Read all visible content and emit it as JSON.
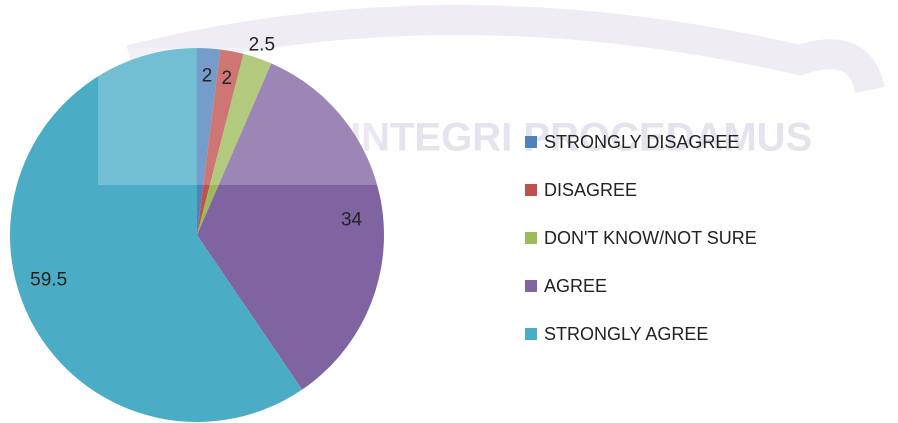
{
  "watermark": "INTEGRI PROCEDAMUS",
  "chart_data": {
    "type": "pie",
    "categories": [
      "STRONGLY DISAGREE",
      "DISAGREE",
      "DON'T KNOW/NOT SURE",
      "AGREE",
      "STRONGLY AGREE"
    ],
    "values": [
      2,
      2,
      2.5,
      34,
      59.5
    ],
    "colors": [
      "#4f81bd",
      "#c0504d",
      "#9bbb59",
      "#8064a2",
      "#4bacc6"
    ],
    "legend": "right"
  }
}
